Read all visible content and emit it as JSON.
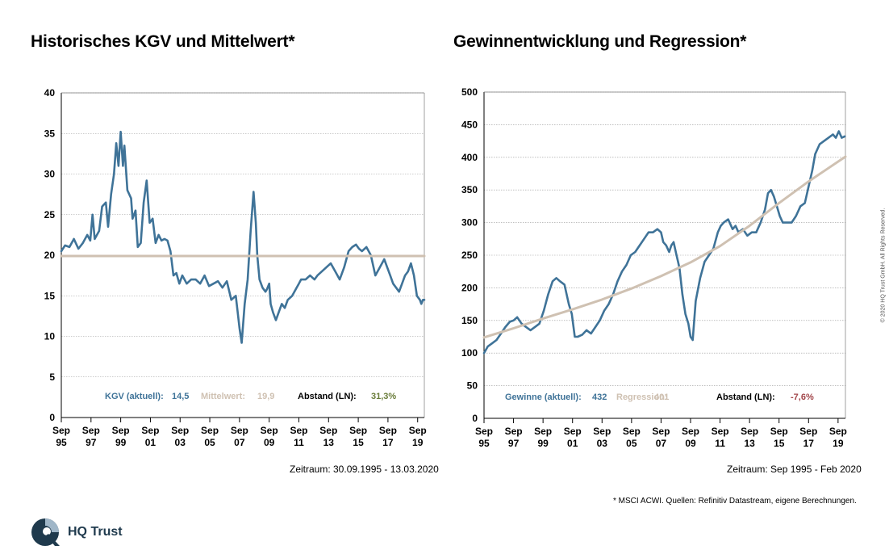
{
  "brand": "HQ Trust",
  "copyright": "© 2020 HQ Trust GmbH. All Rights Reserved.",
  "footnote": "* MSCI ACWI. Quellen: Refinitiv Datastream, eigene Berechnungen.",
  "colors": {
    "series": "#3f7398",
    "mean": "#cfc1b2",
    "grid": "#999999",
    "green": "#6a7d3a",
    "red": "#a2464a",
    "logo": "#1f3a4d"
  },
  "chart_data": [
    {
      "type": "line",
      "title": "Historisches KGV und Mittelwert*",
      "period": "Zeitraum: 30.09.1995 - 13.03.2020",
      "ylim": [
        0,
        40
      ],
      "yticks": [
        0,
        5,
        10,
        15,
        20,
        25,
        30,
        35,
        40
      ],
      "xlim": [
        1995.75,
        2020.2
      ],
      "xticks": [
        {
          "x": 1995.75,
          "label": [
            "Sep",
            "95"
          ]
        },
        {
          "x": 1997.75,
          "label": [
            "Sep",
            "97"
          ]
        },
        {
          "x": 1999.75,
          "label": [
            "Sep",
            "99"
          ]
        },
        {
          "x": 2001.75,
          "label": [
            "Sep",
            "01"
          ]
        },
        {
          "x": 2003.75,
          "label": [
            "Sep",
            "03"
          ]
        },
        {
          "x": 2005.75,
          "label": [
            "Sep",
            "05"
          ]
        },
        {
          "x": 2007.75,
          "label": [
            "Sep",
            "07"
          ]
        },
        {
          "x": 2009.75,
          "label": [
            "Sep",
            "09"
          ]
        },
        {
          "x": 2011.75,
          "label": [
            "Sep",
            "11"
          ]
        },
        {
          "x": 2013.75,
          "label": [
            "Sep",
            "13"
          ]
        },
        {
          "x": 2015.75,
          "label": [
            "Sep",
            "15"
          ]
        },
        {
          "x": 2017.75,
          "label": [
            "Sep",
            "17"
          ]
        },
        {
          "x": 2019.75,
          "label": [
            "Sep",
            "19"
          ]
        }
      ],
      "grid": true,
      "series": [
        {
          "style": "series",
          "x": [
            1995.75,
            1996.0,
            1996.3,
            1996.6,
            1996.9,
            1997.2,
            1997.5,
            1997.7,
            1997.85,
            1998.0,
            1998.3,
            1998.5,
            1998.75,
            1998.9,
            1999.1,
            1999.3,
            1999.45,
            1999.6,
            1999.75,
            1999.9,
            2000.0,
            2000.2,
            2000.45,
            2000.55,
            2000.75,
            2000.9,
            2001.1,
            2001.3,
            2001.5,
            2001.7,
            2001.9,
            2002.1,
            2002.3,
            2002.5,
            2002.7,
            2002.9,
            2003.1,
            2003.3,
            2003.5,
            2003.7,
            2003.9,
            2004.2,
            2004.5,
            2004.8,
            2005.1,
            2005.4,
            2005.7,
            2006.0,
            2006.3,
            2006.6,
            2006.9,
            2007.2,
            2007.5,
            2007.75,
            2007.9,
            2008.1,
            2008.3,
            2008.5,
            2008.7,
            2008.85,
            2008.95,
            2009.1,
            2009.3,
            2009.5,
            2009.6,
            2009.75,
            2009.85,
            2010.0,
            2010.2,
            2010.4,
            2010.6,
            2010.8,
            2011.0,
            2011.3,
            2011.6,
            2011.75,
            2011.9,
            2012.2,
            2012.5,
            2012.8,
            2013.0,
            2013.3,
            2013.6,
            2013.9,
            2014.2,
            2014.5,
            2014.8,
            2015.1,
            2015.35,
            2015.6,
            2015.8,
            2016.0,
            2016.3,
            2016.6,
            2016.9,
            2017.2,
            2017.5,
            2017.7,
            2017.9,
            2018.1,
            2018.3,
            2018.5,
            2018.7,
            2018.9,
            2019.1,
            2019.3,
            2019.5,
            2019.7,
            2019.9,
            2020.0,
            2020.1,
            2020.2
          ],
          "y": [
            20.5,
            21.2,
            21.0,
            22.0,
            20.8,
            21.5,
            22.5,
            21.8,
            25.0,
            22.0,
            23.0,
            26.0,
            26.5,
            23.5,
            27.5,
            30.0,
            33.8,
            31.0,
            35.2,
            31.0,
            33.5,
            28.0,
            27.0,
            24.5,
            25.5,
            21.0,
            21.5,
            26.5,
            29.2,
            24.0,
            24.5,
            21.5,
            22.5,
            21.8,
            22.0,
            21.8,
            20.5,
            17.5,
            17.8,
            16.5,
            17.5,
            16.5,
            17.0,
            17.0,
            16.5,
            17.5,
            16.2,
            16.5,
            16.8,
            16.0,
            16.8,
            14.5,
            15.0,
            11.0,
            9.2,
            14.0,
            17.0,
            23.0,
            27.8,
            24.0,
            20.0,
            17.0,
            16.0,
            15.5,
            15.8,
            16.5,
            14.0,
            13.0,
            12.0,
            13.0,
            14.0,
            13.5,
            14.5,
            15.0,
            16.0,
            16.5,
            17.0,
            17.0,
            17.5,
            17.0,
            17.5,
            18.0,
            18.5,
            19.0,
            18.0,
            17.0,
            18.5,
            20.5,
            21.0,
            21.3,
            20.8,
            20.5,
            21.0,
            20.0,
            17.5,
            18.5,
            19.5,
            18.5,
            17.5,
            16.5,
            16.0,
            15.5,
            16.5,
            17.5,
            18.0,
            19.0,
            17.5,
            15.0,
            14.5,
            14.0,
            14.5,
            14.5
          ]
        },
        {
          "style": "mean",
          "x": [
            1995.75,
            2020.2
          ],
          "y": [
            19.9,
            19.9
          ]
        }
      ],
      "annotations": [
        {
          "label": "KGV  (aktuell):",
          "value": "14,5",
          "style": "series"
        },
        {
          "label": "Mittelwert:",
          "value": "19,9",
          "style": "mean"
        },
        {
          "label": "Abstand (LN):",
          "value": "31,3%",
          "style": "green"
        }
      ]
    },
    {
      "type": "line",
      "title": "Gewinnentwicklung und Regression*",
      "period": "Zeitraum: Sep 1995 - Feb 2020",
      "ylim": [
        0,
        500
      ],
      "yticks": [
        0,
        50,
        100,
        150,
        200,
        250,
        300,
        350,
        400,
        450,
        500
      ],
      "xlim": [
        1995.75,
        2020.25
      ],
      "xticks": [
        {
          "x": 1995.75,
          "label": [
            "Sep",
            "95"
          ]
        },
        {
          "x": 1997.75,
          "label": [
            "Sep",
            "97"
          ]
        },
        {
          "x": 1999.75,
          "label": [
            "Sep",
            "99"
          ]
        },
        {
          "x": 2001.75,
          "label": [
            "Sep",
            "01"
          ]
        },
        {
          "x": 2003.75,
          "label": [
            "Sep",
            "03"
          ]
        },
        {
          "x": 2005.75,
          "label": [
            "Sep",
            "05"
          ]
        },
        {
          "x": 2007.75,
          "label": [
            "Sep",
            "07"
          ]
        },
        {
          "x": 2009.75,
          "label": [
            "Sep",
            "09"
          ]
        },
        {
          "x": 2011.75,
          "label": [
            "Sep",
            "11"
          ]
        },
        {
          "x": 2013.75,
          "label": [
            "Sep",
            "13"
          ]
        },
        {
          "x": 2015.75,
          "label": [
            "Sep",
            "15"
          ]
        },
        {
          "x": 2017.75,
          "label": [
            "Sep",
            "17"
          ]
        },
        {
          "x": 2019.75,
          "label": [
            "Sep",
            "19"
          ]
        }
      ],
      "grid": true,
      "series": [
        {
          "style": "series",
          "x": [
            1995.75,
            1996.0,
            1996.3,
            1996.6,
            1996.9,
            1997.2,
            1997.5,
            1997.75,
            1998.0,
            1998.3,
            1998.6,
            1998.9,
            1999.2,
            1999.5,
            1999.8,
            2000.1,
            2000.4,
            2000.65,
            2000.9,
            2001.2,
            2001.5,
            2001.7,
            2001.9,
            2002.1,
            2002.4,
            2002.7,
            2003.0,
            2003.3,
            2003.6,
            2003.9,
            2004.2,
            2004.5,
            2004.8,
            2005.1,
            2005.4,
            2005.7,
            2006.0,
            2006.3,
            2006.6,
            2006.9,
            2007.2,
            2007.5,
            2007.75,
            2007.9,
            2008.1,
            2008.3,
            2008.45,
            2008.6,
            2008.8,
            2008.9,
            2009.0,
            2009.2,
            2009.4,
            2009.6,
            2009.75,
            2009.9,
            2010.1,
            2010.4,
            2010.7,
            2011.0,
            2011.3,
            2011.6,
            2011.8,
            2012.0,
            2012.3,
            2012.6,
            2012.8,
            2013.0,
            2013.3,
            2013.6,
            2013.9,
            2014.2,
            2014.5,
            2014.8,
            2015.0,
            2015.2,
            2015.4,
            2015.6,
            2015.8,
            2016.0,
            2016.3,
            2016.6,
            2016.9,
            2017.2,
            2017.5,
            2017.8,
            2018.0,
            2018.2,
            2018.5,
            2018.8,
            2019.1,
            2019.4,
            2019.6,
            2019.8,
            2020.0,
            2020.2
          ],
          "y": [
            100,
            110,
            115,
            120,
            130,
            140,
            148,
            150,
            155,
            145,
            140,
            135,
            140,
            145,
            165,
            190,
            210,
            215,
            210,
            205,
            175,
            160,
            125,
            125,
            128,
            135,
            130,
            140,
            150,
            165,
            175,
            190,
            210,
            225,
            235,
            250,
            255,
            265,
            275,
            285,
            285,
            290,
            285,
            270,
            265,
            255,
            265,
            270,
            250,
            240,
            230,
            190,
            160,
            145,
            125,
            120,
            180,
            215,
            240,
            250,
            260,
            285,
            295,
            300,
            305,
            290,
            295,
            285,
            290,
            280,
            285,
            285,
            300,
            320,
            345,
            350,
            340,
            325,
            310,
            300,
            300,
            300,
            310,
            325,
            330,
            360,
            380,
            405,
            420,
            425,
            430,
            435,
            430,
            440,
            430,
            432
          ]
        },
        {
          "style": "mean",
          "x": [
            1995.75,
            1997.75,
            1999.75,
            2001.75,
            2003.75,
            2005.75,
            2007.75,
            2009.75,
            2011.75,
            2013.75,
            2015.75,
            2017.75,
            2020.25
          ],
          "y": [
            124,
            138,
            153,
            167,
            182,
            199,
            218,
            239,
            264,
            295,
            330,
            363,
            401
          ]
        }
      ],
      "annotations": [
        {
          "label": "Gewinne  (aktuell):",
          "value": "432",
          "style": "series"
        },
        {
          "label": "Regression:",
          "value": "401",
          "style": "mean"
        },
        {
          "label": "Abstand (LN):",
          "value": "-7,6%",
          "style": "red"
        }
      ]
    }
  ]
}
